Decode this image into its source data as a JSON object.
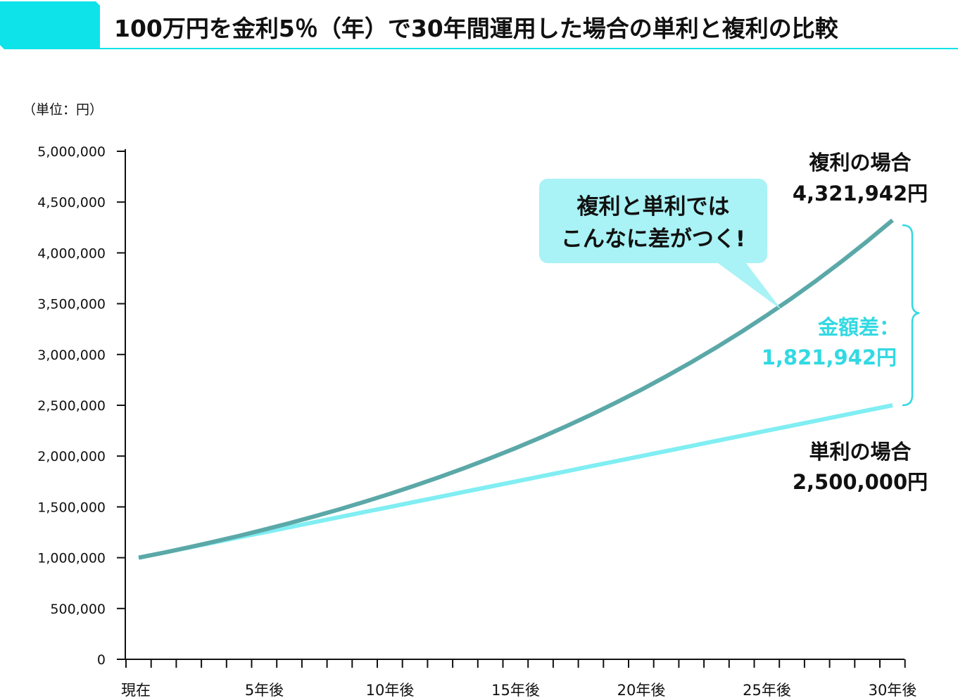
{
  "title": "100万円を金利5％（年）で30年間運用した場合の単利と複利の比較",
  "colors": {
    "accent": "#0de3e8",
    "compound": "#5ba8a8",
    "simple": "#80eef2",
    "callout": "#a9f2f5",
    "difference": "#33d9e2"
  },
  "chart_data": {
    "type": "line",
    "unit_label": "（単位：円）",
    "ylim": [
      0,
      5000000
    ],
    "y_ticks": [
      "0",
      "500,000",
      "1,000,000",
      "1,500,000",
      "2,000,000",
      "2,500,000",
      "3,000,000",
      "3,500,000",
      "4,000,000",
      "4,500,000",
      "5,000,000"
    ],
    "x_tick_labels": [
      {
        "index": 0,
        "label": "現在"
      },
      {
        "index": 5,
        "label": "5年後"
      },
      {
        "index": 10,
        "label": "10年後"
      },
      {
        "index": 15,
        "label": "15年後"
      },
      {
        "index": 20,
        "label": "20年後"
      },
      {
        "index": 25,
        "label": "25年後"
      },
      {
        "index": 30,
        "label": "30年後"
      }
    ],
    "x": [
      0,
      1,
      2,
      3,
      4,
      5,
      6,
      7,
      8,
      9,
      10,
      11,
      12,
      13,
      14,
      15,
      16,
      17,
      18,
      19,
      20,
      21,
      22,
      23,
      24,
      25,
      26,
      27,
      28,
      29,
      30
    ],
    "series": [
      {
        "name": "複利の場合",
        "color": "#5ba8a8",
        "values": [
          1000000,
          1050000,
          1102500,
          1157625,
          1215506,
          1276282,
          1340096,
          1407100,
          1477455,
          1551328,
          1628895,
          1710339,
          1795856,
          1885649,
          1979932,
          2078928,
          2182875,
          2292018,
          2406619,
          2526950,
          2653298,
          2785963,
          2925261,
          3071524,
          3225100,
          3386355,
          3555673,
          3733456,
          3920129,
          4116136,
          4321942
        ]
      },
      {
        "name": "単利の場合",
        "color": "#80eef2",
        "values": [
          1000000,
          1050000,
          1100000,
          1150000,
          1200000,
          1250000,
          1300000,
          1350000,
          1400000,
          1450000,
          1500000,
          1550000,
          1600000,
          1650000,
          1700000,
          1750000,
          1800000,
          1850000,
          1900000,
          1950000,
          2000000,
          2050000,
          2100000,
          2150000,
          2200000,
          2250000,
          2300000,
          2350000,
          2400000,
          2450000,
          2500000
        ]
      }
    ],
    "annotations": {
      "compound_label": "複利の場合",
      "compound_value": "4,321,942円",
      "simple_label": "単利の場合",
      "simple_value": "2,500,000円",
      "difference_label": "金額差：",
      "difference_value": "1,821,942円",
      "callout_line1": "複利と単利では",
      "callout_line2": "こんなに差がつく!"
    }
  }
}
